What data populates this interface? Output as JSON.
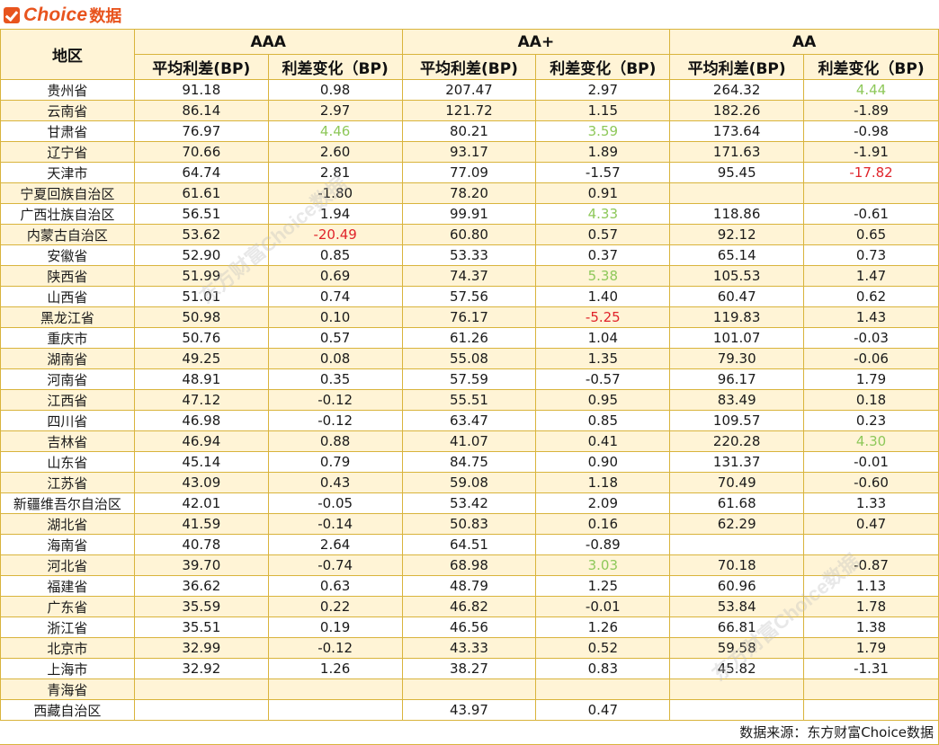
{
  "brand": {
    "name": "Choice",
    "suffix": "数据"
  },
  "watermark": "东方财富Choice数据",
  "table": {
    "region_header": "地区",
    "groups": [
      "AAA",
      "AA+",
      "AA"
    ],
    "sub_headers": [
      "平均利差(BP)",
      "利差变化（BP)"
    ],
    "rows": [
      {
        "region": "贵州省",
        "v": [
          [
            "91.18",
            "n"
          ],
          [
            "0.98",
            "n"
          ],
          [
            "207.47",
            "n"
          ],
          [
            "2.97",
            "n"
          ],
          [
            "264.32",
            "n"
          ],
          [
            "4.44",
            "g"
          ]
        ]
      },
      {
        "region": "云南省",
        "v": [
          [
            "86.14",
            "n"
          ],
          [
            "2.97",
            "n"
          ],
          [
            "121.72",
            "n"
          ],
          [
            "1.15",
            "n"
          ],
          [
            "182.26",
            "n"
          ],
          [
            "-1.89",
            "n"
          ]
        ]
      },
      {
        "region": "甘肃省",
        "v": [
          [
            "76.97",
            "n"
          ],
          [
            "4.46",
            "g"
          ],
          [
            "80.21",
            "n"
          ],
          [
            "3.59",
            "g"
          ],
          [
            "173.64",
            "n"
          ],
          [
            "-0.98",
            "n"
          ]
        ]
      },
      {
        "region": "辽宁省",
        "v": [
          [
            "70.66",
            "n"
          ],
          [
            "2.60",
            "n"
          ],
          [
            "93.17",
            "n"
          ],
          [
            "1.89",
            "n"
          ],
          [
            "171.63",
            "n"
          ],
          [
            "-1.91",
            "n"
          ]
        ]
      },
      {
        "region": "天津市",
        "v": [
          [
            "64.74",
            "n"
          ],
          [
            "2.81",
            "n"
          ],
          [
            "77.09",
            "n"
          ],
          [
            "-1.57",
            "n"
          ],
          [
            "95.45",
            "n"
          ],
          [
            "-17.82",
            "r"
          ]
        ]
      },
      {
        "region": "宁夏回族自治区",
        "v": [
          [
            "61.61",
            "n"
          ],
          [
            "-1.80",
            "n"
          ],
          [
            "78.20",
            "n"
          ],
          [
            "0.91",
            "n"
          ],
          [
            "",
            "n"
          ],
          [
            "",
            "n"
          ]
        ]
      },
      {
        "region": "广西壮族自治区",
        "v": [
          [
            "56.51",
            "n"
          ],
          [
            "1.94",
            "n"
          ],
          [
            "99.91",
            "n"
          ],
          [
            "4.33",
            "g"
          ],
          [
            "118.86",
            "n"
          ],
          [
            "-0.61",
            "n"
          ]
        ]
      },
      {
        "region": "内蒙古自治区",
        "v": [
          [
            "53.62",
            "n"
          ],
          [
            "-20.49",
            "r"
          ],
          [
            "60.80",
            "n"
          ],
          [
            "0.57",
            "n"
          ],
          [
            "92.12",
            "n"
          ],
          [
            "0.65",
            "n"
          ]
        ]
      },
      {
        "region": "安徽省",
        "v": [
          [
            "52.90",
            "n"
          ],
          [
            "0.85",
            "n"
          ],
          [
            "53.33",
            "n"
          ],
          [
            "0.37",
            "n"
          ],
          [
            "65.14",
            "n"
          ],
          [
            "0.73",
            "n"
          ]
        ]
      },
      {
        "region": "陕西省",
        "v": [
          [
            "51.99",
            "n"
          ],
          [
            "0.69",
            "n"
          ],
          [
            "74.37",
            "n"
          ],
          [
            "5.38",
            "g"
          ],
          [
            "105.53",
            "n"
          ],
          [
            "1.47",
            "n"
          ]
        ]
      },
      {
        "region": "山西省",
        "v": [
          [
            "51.01",
            "n"
          ],
          [
            "0.74",
            "n"
          ],
          [
            "57.56",
            "n"
          ],
          [
            "1.40",
            "n"
          ],
          [
            "60.47",
            "n"
          ],
          [
            "0.62",
            "n"
          ]
        ]
      },
      {
        "region": "黑龙江省",
        "v": [
          [
            "50.98",
            "n"
          ],
          [
            "0.10",
            "n"
          ],
          [
            "76.17",
            "n"
          ],
          [
            "-5.25",
            "r"
          ],
          [
            "119.83",
            "n"
          ],
          [
            "1.43",
            "n"
          ]
        ]
      },
      {
        "region": "重庆市",
        "v": [
          [
            "50.76",
            "n"
          ],
          [
            "0.57",
            "n"
          ],
          [
            "61.26",
            "n"
          ],
          [
            "1.04",
            "n"
          ],
          [
            "101.07",
            "n"
          ],
          [
            "-0.03",
            "n"
          ]
        ]
      },
      {
        "region": "湖南省",
        "v": [
          [
            "49.25",
            "n"
          ],
          [
            "0.08",
            "n"
          ],
          [
            "55.08",
            "n"
          ],
          [
            "1.35",
            "n"
          ],
          [
            "79.30",
            "n"
          ],
          [
            "-0.06",
            "n"
          ]
        ]
      },
      {
        "region": "河南省",
        "v": [
          [
            "48.91",
            "n"
          ],
          [
            "0.35",
            "n"
          ],
          [
            "57.59",
            "n"
          ],
          [
            "-0.57",
            "n"
          ],
          [
            "96.17",
            "n"
          ],
          [
            "1.79",
            "n"
          ]
        ]
      },
      {
        "region": "江西省",
        "v": [
          [
            "47.12",
            "n"
          ],
          [
            "-0.12",
            "n"
          ],
          [
            "55.51",
            "n"
          ],
          [
            "0.95",
            "n"
          ],
          [
            "83.49",
            "n"
          ],
          [
            "0.18",
            "n"
          ]
        ]
      },
      {
        "region": "四川省",
        "v": [
          [
            "46.98",
            "n"
          ],
          [
            "-0.12",
            "n"
          ],
          [
            "63.47",
            "n"
          ],
          [
            "0.85",
            "n"
          ],
          [
            "109.57",
            "n"
          ],
          [
            "0.23",
            "n"
          ]
        ]
      },
      {
        "region": "吉林省",
        "v": [
          [
            "46.94",
            "n"
          ],
          [
            "0.88",
            "n"
          ],
          [
            "41.07",
            "n"
          ],
          [
            "0.41",
            "n"
          ],
          [
            "220.28",
            "n"
          ],
          [
            "4.30",
            "g"
          ]
        ]
      },
      {
        "region": "山东省",
        "v": [
          [
            "45.14",
            "n"
          ],
          [
            "0.79",
            "n"
          ],
          [
            "84.75",
            "n"
          ],
          [
            "0.90",
            "n"
          ],
          [
            "131.37",
            "n"
          ],
          [
            "-0.01",
            "n"
          ]
        ]
      },
      {
        "region": "江苏省",
        "v": [
          [
            "43.09",
            "n"
          ],
          [
            "0.43",
            "n"
          ],
          [
            "59.08",
            "n"
          ],
          [
            "1.18",
            "n"
          ],
          [
            "70.49",
            "n"
          ],
          [
            "-0.60",
            "n"
          ]
        ]
      },
      {
        "region": "新疆维吾尔自治区",
        "v": [
          [
            "42.01",
            "n"
          ],
          [
            "-0.05",
            "n"
          ],
          [
            "53.42",
            "n"
          ],
          [
            "2.09",
            "n"
          ],
          [
            "61.68",
            "n"
          ],
          [
            "1.33",
            "n"
          ]
        ]
      },
      {
        "region": "湖北省",
        "v": [
          [
            "41.59",
            "n"
          ],
          [
            "-0.14",
            "n"
          ],
          [
            "50.83",
            "n"
          ],
          [
            "0.16",
            "n"
          ],
          [
            "62.29",
            "n"
          ],
          [
            "0.47",
            "n"
          ]
        ]
      },
      {
        "region": "海南省",
        "v": [
          [
            "40.78",
            "n"
          ],
          [
            "2.64",
            "n"
          ],
          [
            "64.51",
            "n"
          ],
          [
            "-0.89",
            "n"
          ],
          [
            "",
            "n"
          ],
          [
            "",
            "n"
          ]
        ]
      },
      {
        "region": "河北省",
        "v": [
          [
            "39.70",
            "n"
          ],
          [
            "-0.74",
            "n"
          ],
          [
            "68.98",
            "n"
          ],
          [
            "3.03",
            "g"
          ],
          [
            "70.18",
            "n"
          ],
          [
            "-0.87",
            "n"
          ]
        ]
      },
      {
        "region": "福建省",
        "v": [
          [
            "36.62",
            "n"
          ],
          [
            "0.63",
            "n"
          ],
          [
            "48.79",
            "n"
          ],
          [
            "1.25",
            "n"
          ],
          [
            "60.96",
            "n"
          ],
          [
            "1.13",
            "n"
          ]
        ]
      },
      {
        "region": "广东省",
        "v": [
          [
            "35.59",
            "n"
          ],
          [
            "0.22",
            "n"
          ],
          [
            "46.82",
            "n"
          ],
          [
            "-0.01",
            "n"
          ],
          [
            "53.84",
            "n"
          ],
          [
            "1.78",
            "n"
          ]
        ]
      },
      {
        "region": "浙江省",
        "v": [
          [
            "35.51",
            "n"
          ],
          [
            "0.19",
            "n"
          ],
          [
            "46.56",
            "n"
          ],
          [
            "1.26",
            "n"
          ],
          [
            "66.81",
            "n"
          ],
          [
            "1.38",
            "n"
          ]
        ]
      },
      {
        "region": "北京市",
        "v": [
          [
            "32.99",
            "n"
          ],
          [
            "-0.12",
            "n"
          ],
          [
            "43.33",
            "n"
          ],
          [
            "0.52",
            "n"
          ],
          [
            "59.58",
            "n"
          ],
          [
            "1.79",
            "n"
          ]
        ]
      },
      {
        "region": "上海市",
        "v": [
          [
            "32.92",
            "n"
          ],
          [
            "1.26",
            "n"
          ],
          [
            "38.27",
            "n"
          ],
          [
            "0.83",
            "n"
          ],
          [
            "45.82",
            "n"
          ],
          [
            "-1.31",
            "n"
          ]
        ]
      },
      {
        "region": "青海省",
        "v": [
          [
            "",
            "n"
          ],
          [
            "",
            "n"
          ],
          [
            "",
            "n"
          ],
          [
            "",
            "n"
          ],
          [
            "",
            "n"
          ],
          [
            "",
            "n"
          ]
        ]
      },
      {
        "region": "西藏自治区",
        "v": [
          [
            "",
            "n"
          ],
          [
            "",
            "n"
          ],
          [
            "43.97",
            "n"
          ],
          [
            "0.47",
            "n"
          ],
          [
            "",
            "n"
          ],
          [
            "",
            "n"
          ]
        ]
      }
    ]
  },
  "footer": {
    "source": "数据来源：东方财富Choice数据"
  },
  "colors": {
    "highlight_up": "#8ec85a",
    "highlight_down": "#e0242b",
    "border": "#d9b43c",
    "band": "#fff4d6"
  }
}
